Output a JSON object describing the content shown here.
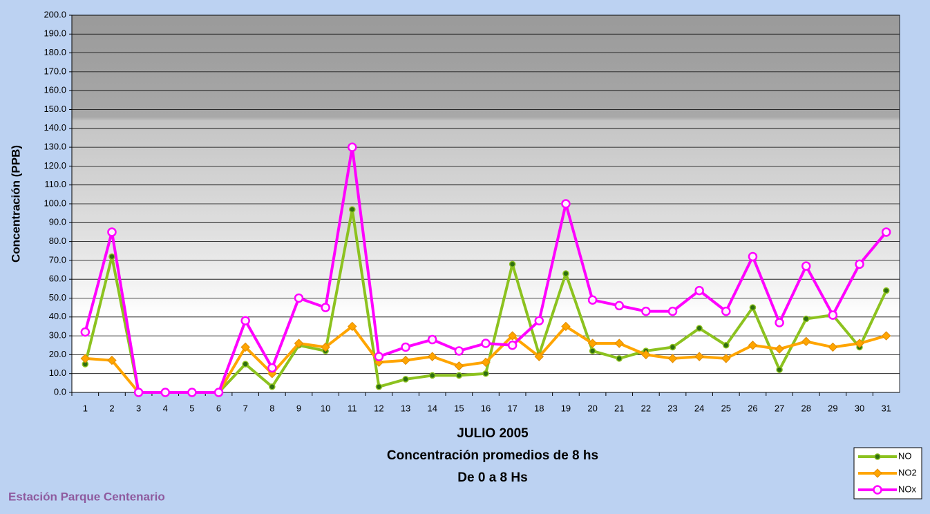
{
  "chart_data": {
    "type": "line",
    "ylabel": "Concentración  (PPB)",
    "xlabel_lines": [
      "JULIO 2005",
      "Concentración promedios de 8 hs",
      "De 0 a 8 Hs"
    ],
    "footer": "Estación Parque Centenario",
    "categories": [
      "1",
      "2",
      "3",
      "4",
      "5",
      "6",
      "7",
      "8",
      "9",
      "10",
      "11",
      "12",
      "13",
      "14",
      "15",
      "16",
      "17",
      "18",
      "19",
      "20",
      "21",
      "22",
      "23",
      "24",
      "25",
      "26",
      "27",
      "28",
      "29",
      "30",
      "31"
    ],
    "series": [
      {
        "name": "NO",
        "color": "#8cc21f",
        "marker": "dot",
        "values": [
          15,
          72,
          0,
          0,
          0,
          0,
          15,
          3,
          25,
          22,
          97,
          3,
          7,
          9,
          9,
          10,
          68,
          20,
          63,
          22,
          18,
          22,
          24,
          34,
          25,
          45,
          12,
          39,
          41,
          24,
          54
        ]
      },
      {
        "name": "NO2",
        "color": "#ffa500",
        "marker": "diamond",
        "values": [
          18,
          17,
          0,
          0,
          0,
          0,
          24,
          10,
          26,
          24,
          35,
          16,
          17,
          19,
          14,
          16,
          30,
          19,
          35,
          26,
          26,
          20,
          18,
          19,
          18,
          25,
          23,
          27,
          24,
          26,
          30
        ]
      },
      {
        "name": "NOx",
        "color": "#ff00ff",
        "marker": "ring",
        "values": [
          32,
          85,
          0,
          0,
          0,
          0,
          38,
          13,
          50,
          45,
          130,
          19,
          24,
          28,
          22,
          26,
          25,
          38,
          100,
          49,
          46,
          43,
          43,
          54,
          43,
          72,
          37,
          67,
          41,
          68,
          85
        ]
      }
    ],
    "ylim": [
      0,
      200
    ],
    "yticks": [
      {
        "value": 0,
        "label": "0.0"
      },
      {
        "value": 10,
        "label": "10.0"
      },
      {
        "value": 20,
        "label": "20.0"
      },
      {
        "value": 30,
        "label": "30.0"
      },
      {
        "value": 40,
        "label": "40.0"
      },
      {
        "value": 50,
        "label": "50.0"
      },
      {
        "value": 60,
        "label": "60.0"
      },
      {
        "value": 70,
        "label": "70.0"
      },
      {
        "value": 80,
        "label": "80.0"
      },
      {
        "value": 90,
        "label": "90.0"
      },
      {
        "value": 100,
        "label": "100.0"
      },
      {
        "value": 110,
        "label": "110.0"
      },
      {
        "value": 120,
        "label": "120.0"
      },
      {
        "value": 130,
        "label": "130.0"
      },
      {
        "value": 140,
        "label": "140.0"
      },
      {
        "value": 150,
        "label": "150.0"
      },
      {
        "value": 160,
        "label": "160.0"
      },
      {
        "value": 170,
        "label": "170.0"
      },
      {
        "value": 180,
        "label": "180.0"
      },
      {
        "value": 190,
        "label": "190.0"
      },
      {
        "value": 200,
        "label": "200.0"
      }
    ],
    "grid": true
  }
}
